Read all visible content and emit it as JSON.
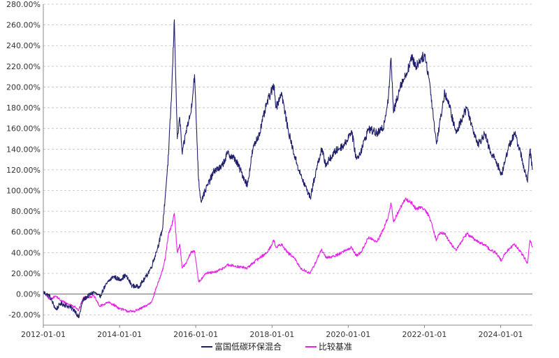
{
  "chart_data": {
    "type": "line",
    "title": "",
    "xlabel": "",
    "ylabel": "",
    "ylim": [
      -0.3,
      2.8
    ],
    "xlim": [
      "2012-01-01",
      "2024-11-01"
    ],
    "grid": true,
    "legend_position": "bottom",
    "y_tick_labels": [
      "-20.00%",
      "0.00%",
      "20.00%",
      "40.00%",
      "60.00%",
      "80.00%",
      "100.00%",
      "120.00%",
      "140.00%",
      "160.00%",
      "180.00%",
      "200.00%",
      "220.00%",
      "240.00%",
      "260.00%",
      "280.00%"
    ],
    "y_tick_values": [
      -0.2,
      0,
      0.2,
      0.4,
      0.6,
      0.8,
      1.0,
      1.2,
      1.4,
      1.6,
      1.8,
      2.0,
      2.2,
      2.4,
      2.6,
      2.8
    ],
    "x_tick_labels": [
      "2012-01-01",
      "2014-01-01",
      "2016-01-01",
      "2018-01-01",
      "2020-01-01",
      "2022-01-01",
      "2024-01-01"
    ],
    "series": [
      {
        "name": "富国低碳环保混合",
        "color": "#1f1f6b",
        "points": [
          [
            "2012-01-01",
            0.02
          ],
          [
            "2012-03-01",
            -0.02
          ],
          [
            "2012-05-01",
            -0.15
          ],
          [
            "2012-06-15",
            -0.09
          ],
          [
            "2012-09-01",
            -0.12
          ],
          [
            "2012-11-01",
            -0.16
          ],
          [
            "2012-12-05",
            -0.23
          ],
          [
            "2013-01-15",
            -0.06
          ],
          [
            "2013-03-01",
            -0.02
          ],
          [
            "2013-05-01",
            0.02
          ],
          [
            "2013-06-25",
            -0.03
          ],
          [
            "2013-08-01",
            0.05
          ],
          [
            "2013-09-15",
            0.12
          ],
          [
            "2013-11-01",
            0.17
          ],
          [
            "2014-01-01",
            0.14
          ],
          [
            "2014-03-01",
            0.18
          ],
          [
            "2014-05-01",
            0.08
          ],
          [
            "2014-07-01",
            0.07
          ],
          [
            "2014-09-01",
            0.15
          ],
          [
            "2014-11-01",
            0.26
          ],
          [
            "2015-01-01",
            0.45
          ],
          [
            "2015-02-15",
            0.62
          ],
          [
            "2015-03-15",
            0.95
          ],
          [
            "2015-04-15",
            1.35
          ],
          [
            "2015-05-15",
            1.95
          ],
          [
            "2015-06-10",
            2.65
          ],
          [
            "2015-07-08",
            1.5
          ],
          [
            "2015-08-01",
            1.7
          ],
          [
            "2015-08-25",
            1.35
          ],
          [
            "2015-10-01",
            1.58
          ],
          [
            "2015-11-15",
            1.75
          ],
          [
            "2015-12-20",
            2.12
          ],
          [
            "2016-01-28",
            1.1
          ],
          [
            "2016-02-20",
            0.9
          ],
          [
            "2016-04-01",
            1.0
          ],
          [
            "2016-07-01",
            1.2
          ],
          [
            "2016-09-01",
            1.22
          ],
          [
            "2016-11-01",
            1.36
          ],
          [
            "2017-01-15",
            1.3
          ],
          [
            "2017-05-10",
            1.05
          ],
          [
            "2017-07-01",
            1.4
          ],
          [
            "2017-09-01",
            1.55
          ],
          [
            "2017-11-15",
            1.85
          ],
          [
            "2018-01-20",
            2.02
          ],
          [
            "2018-02-10",
            1.8
          ],
          [
            "2018-04-01",
            1.95
          ],
          [
            "2018-06-01",
            1.6
          ],
          [
            "2018-08-01",
            1.35
          ],
          [
            "2018-10-01",
            1.15
          ],
          [
            "2019-01-03",
            0.93
          ],
          [
            "2019-03-01",
            1.2
          ],
          [
            "2019-04-20",
            1.4
          ],
          [
            "2019-06-01",
            1.25
          ],
          [
            "2019-09-01",
            1.38
          ],
          [
            "2019-12-01",
            1.45
          ],
          [
            "2020-02-01",
            1.58
          ],
          [
            "2020-03-20",
            1.3
          ],
          [
            "2020-05-01",
            1.38
          ],
          [
            "2020-07-15",
            1.6
          ],
          [
            "2020-10-01",
            1.55
          ],
          [
            "2020-12-01",
            1.6
          ],
          [
            "2021-01-20",
            1.9
          ],
          [
            "2021-02-15",
            2.28
          ],
          [
            "2021-03-10",
            1.75
          ],
          [
            "2021-05-15",
            2.02
          ],
          [
            "2021-07-01",
            2.1
          ],
          [
            "2021-09-01",
            2.28
          ],
          [
            "2021-10-15",
            2.2
          ],
          [
            "2021-12-01",
            2.28
          ],
          [
            "2022-01-05",
            2.3
          ],
          [
            "2022-02-15",
            2.08
          ],
          [
            "2022-04-26",
            1.45
          ],
          [
            "2022-06-01",
            1.68
          ],
          [
            "2022-07-15",
            1.95
          ],
          [
            "2022-09-01",
            1.8
          ],
          [
            "2022-10-31",
            1.55
          ],
          [
            "2023-01-15",
            1.75
          ],
          [
            "2023-02-15",
            1.8
          ],
          [
            "2023-04-01",
            1.62
          ],
          [
            "2023-06-01",
            1.45
          ],
          [
            "2023-08-01",
            1.55
          ],
          [
            "2023-10-01",
            1.35
          ],
          [
            "2023-11-15",
            1.3
          ],
          [
            "2024-01-10",
            1.15
          ],
          [
            "2024-02-05",
            1.25
          ],
          [
            "2024-03-15",
            1.42
          ],
          [
            "2024-05-15",
            1.55
          ],
          [
            "2024-07-01",
            1.4
          ],
          [
            "2024-09-15",
            1.08
          ],
          [
            "2024-10-08",
            1.4
          ],
          [
            "2024-11-01",
            1.2
          ]
        ]
      },
      {
        "name": "比较基准",
        "color": "#e524e5",
        "points": [
          [
            "2012-01-01",
            0.02
          ],
          [
            "2012-03-01",
            -0.05
          ],
          [
            "2012-05-01",
            -0.02
          ],
          [
            "2012-06-15",
            -0.06
          ],
          [
            "2012-09-01",
            -0.1
          ],
          [
            "2012-11-01",
            -0.12
          ],
          [
            "2012-12-05",
            -0.16
          ],
          [
            "2013-01-15",
            -0.04
          ],
          [
            "2013-03-01",
            -0.03
          ],
          [
            "2013-05-01",
            -0.02
          ],
          [
            "2013-06-25",
            -0.12
          ],
          [
            "2013-08-01",
            -0.1
          ],
          [
            "2013-09-15",
            -0.08
          ],
          [
            "2013-11-01",
            -0.1
          ],
          [
            "2014-01-01",
            -0.14
          ],
          [
            "2014-03-01",
            -0.16
          ],
          [
            "2014-05-01",
            -0.17
          ],
          [
            "2014-07-01",
            -0.15
          ],
          [
            "2014-09-01",
            -0.12
          ],
          [
            "2014-11-01",
            -0.08
          ],
          [
            "2015-01-01",
            0.1
          ],
          [
            "2015-02-15",
            0.22
          ],
          [
            "2015-03-15",
            0.35
          ],
          [
            "2015-04-15",
            0.58
          ],
          [
            "2015-05-15",
            0.66
          ],
          [
            "2015-06-10",
            0.78
          ],
          [
            "2015-07-08",
            0.4
          ],
          [
            "2015-08-01",
            0.48
          ],
          [
            "2015-08-25",
            0.25
          ],
          [
            "2015-10-01",
            0.3
          ],
          [
            "2015-11-15",
            0.4
          ],
          [
            "2015-12-20",
            0.42
          ],
          [
            "2016-01-28",
            0.12
          ],
          [
            "2016-02-20",
            0.14
          ],
          [
            "2016-04-01",
            0.2
          ],
          [
            "2016-07-01",
            0.21
          ],
          [
            "2016-09-01",
            0.24
          ],
          [
            "2016-11-01",
            0.28
          ],
          [
            "2017-01-15",
            0.27
          ],
          [
            "2017-05-10",
            0.25
          ],
          [
            "2017-07-01",
            0.3
          ],
          [
            "2017-09-01",
            0.35
          ],
          [
            "2017-11-15",
            0.4
          ],
          [
            "2018-01-20",
            0.52
          ],
          [
            "2018-02-10",
            0.45
          ],
          [
            "2018-04-01",
            0.48
          ],
          [
            "2018-06-01",
            0.4
          ],
          [
            "2018-08-01",
            0.35
          ],
          [
            "2018-10-01",
            0.25
          ],
          [
            "2019-01-03",
            0.2
          ],
          [
            "2019-03-01",
            0.32
          ],
          [
            "2019-04-20",
            0.43
          ],
          [
            "2019-06-01",
            0.35
          ],
          [
            "2019-09-01",
            0.37
          ],
          [
            "2019-12-01",
            0.42
          ],
          [
            "2020-02-01",
            0.45
          ],
          [
            "2020-03-20",
            0.37
          ],
          [
            "2020-05-01",
            0.4
          ],
          [
            "2020-07-15",
            0.55
          ],
          [
            "2020-10-01",
            0.5
          ],
          [
            "2020-12-01",
            0.62
          ],
          [
            "2021-01-20",
            0.75
          ],
          [
            "2021-02-15",
            0.88
          ],
          [
            "2021-03-10",
            0.7
          ],
          [
            "2021-05-15",
            0.83
          ],
          [
            "2021-07-01",
            0.92
          ],
          [
            "2021-09-01",
            0.88
          ],
          [
            "2021-10-15",
            0.82
          ],
          [
            "2021-12-01",
            0.84
          ],
          [
            "2022-01-05",
            0.82
          ],
          [
            "2022-02-15",
            0.75
          ],
          [
            "2022-04-26",
            0.52
          ],
          [
            "2022-06-01",
            0.6
          ],
          [
            "2022-07-15",
            0.58
          ],
          [
            "2022-09-01",
            0.5
          ],
          [
            "2022-10-31",
            0.42
          ],
          [
            "2023-01-15",
            0.55
          ],
          [
            "2023-02-15",
            0.58
          ],
          [
            "2023-04-01",
            0.55
          ],
          [
            "2023-06-01",
            0.5
          ],
          [
            "2023-08-01",
            0.48
          ],
          [
            "2023-10-01",
            0.42
          ],
          [
            "2023-11-15",
            0.4
          ],
          [
            "2024-01-10",
            0.32
          ],
          [
            "2024-02-05",
            0.38
          ],
          [
            "2024-03-15",
            0.43
          ],
          [
            "2024-05-15",
            0.48
          ],
          [
            "2024-07-01",
            0.42
          ],
          [
            "2024-09-15",
            0.3
          ],
          [
            "2024-10-08",
            0.52
          ],
          [
            "2024-11-01",
            0.45
          ]
        ]
      }
    ]
  }
}
